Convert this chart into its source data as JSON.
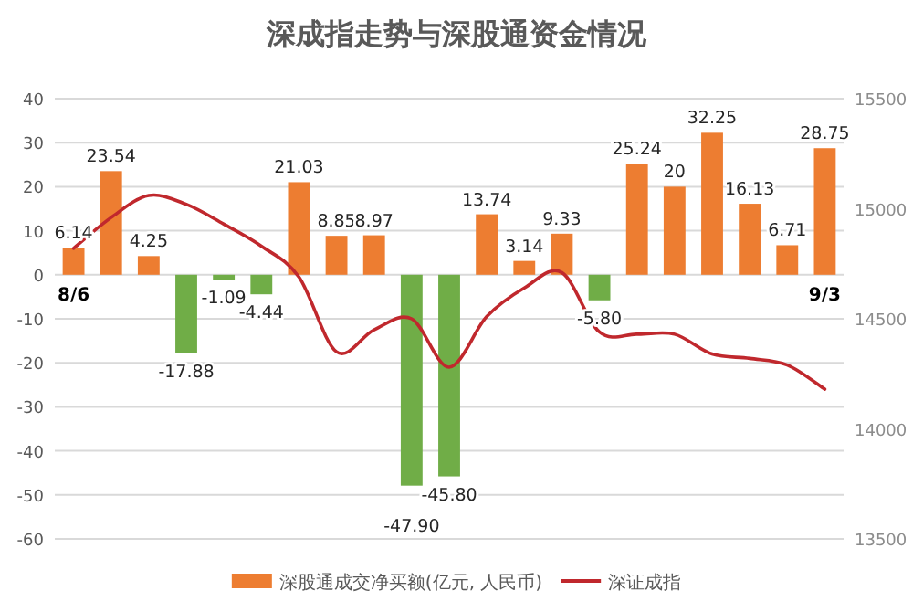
{
  "chart_data": {
    "type": "bar",
    "title": "深成指走势与深股通资金情况",
    "categories": [
      "8/6",
      null,
      null,
      null,
      null,
      null,
      null,
      null,
      null,
      null,
      null,
      null,
      null,
      null,
      null,
      null,
      null,
      null,
      null,
      null,
      "9/3"
    ],
    "series": [
      {
        "name": "深股通成交净买额(亿元, 人民币)",
        "color": "#ed7d31",
        "colors": [
          "#ed7d31",
          "#ed7d31",
          "#ed7d31",
          "#70ad47",
          "#70ad47",
          "#70ad47",
          "#ed7d31",
          "#ed7d31",
          "#ed7d31",
          "#70ad47",
          "#70ad47",
          "#ed7d31",
          "#ed7d31",
          "#ed7d31",
          "#70ad47",
          "#ed7d31",
          "#ed7d31",
          "#ed7d31",
          "#ed7d31",
          "#ed7d31",
          "#ed7d31"
        ],
        "values": [
          6.14,
          23.54,
          4.25,
          -17.88,
          -1.09,
          -4.44,
          21.03,
          8.85,
          8.97,
          -47.9,
          -45.8,
          13.74,
          3.14,
          9.33,
          -5.8,
          25.24,
          20,
          32.25,
          16.13,
          6.71,
          28.75
        ],
        "value_labels": [
          "6.14",
          "23.54",
          "4.25",
          "-17.88",
          "-1.09",
          "-4.44",
          "21.03",
          "8.85",
          "8.97",
          "-47.90",
          "-45.80",
          "13.74",
          "3.14",
          "9.33",
          "-5.80",
          "25.24",
          "20",
          "32.25",
          "16.13",
          "6.71",
          "28.75"
        ]
      },
      {
        "name": "深证成指",
        "type": "line",
        "axis": "y2",
        "color": "#c0282d",
        "values": [
          14820,
          14960,
          15060,
          15020,
          14930,
          14830,
          14690,
          14350,
          14450,
          14500,
          14280,
          14510,
          14640,
          14710,
          14440,
          14430,
          14430,
          14340,
          14320,
          14290,
          14180
        ]
      }
    ],
    "ylim": [
      -60,
      40
    ],
    "yticks": [
      -60,
      -50,
      -40,
      -30,
      -20,
      -10,
      0,
      10,
      20,
      30,
      40
    ],
    "y2lim": [
      13500,
      15500
    ],
    "y2ticks": [
      13500,
      14000,
      14500,
      15000,
      15500
    ],
    "grid": "y",
    "legend": "bottom"
  }
}
